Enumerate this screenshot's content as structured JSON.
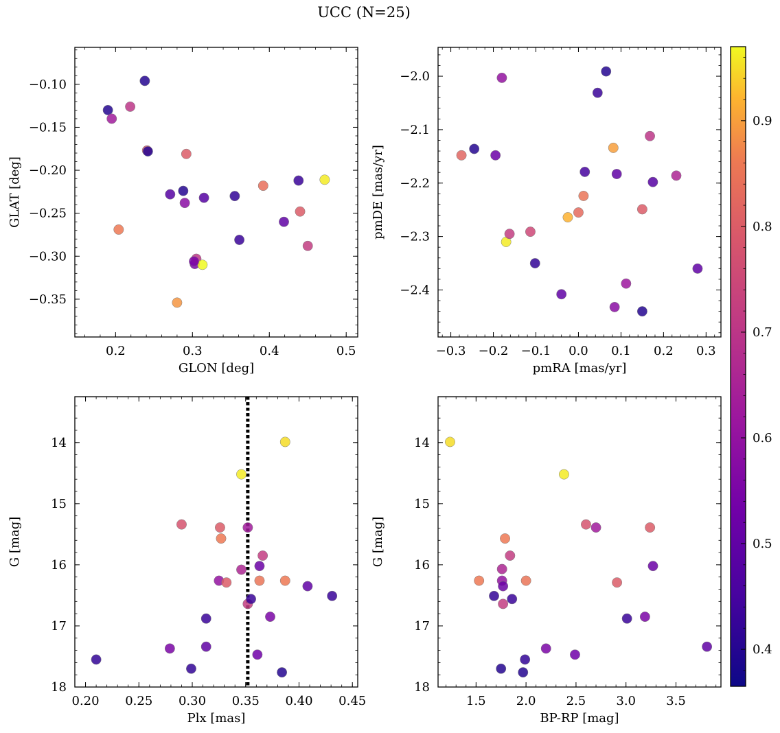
{
  "figure": {
    "title": "UCC (N=25)"
  },
  "colorbar": {
    "range": [
      0.365,
      0.97
    ],
    "ticks": [
      0.4,
      0.5,
      0.6,
      0.7,
      0.8,
      0.9
    ],
    "colormap": "plasma"
  },
  "chart_data": [
    {
      "type": "scatter",
      "id": "glon-glat",
      "xlabel": "GLON [deg]",
      "ylabel": "GLAT [deg]",
      "xlim": [
        0.147,
        0.515
      ],
      "ylim": [
        -0.394,
        -0.057
      ],
      "y_inverted": false,
      "xticks": [
        0.2,
        0.3,
        0.4,
        0.5
      ],
      "xtick_labels": [
        "0.2",
        "0.3",
        "0.4",
        "0.5"
      ],
      "yticks": [
        -0.35,
        -0.3,
        -0.25,
        -0.2,
        -0.15,
        -0.1
      ],
      "ytick_labels": [
        "−0.35",
        "−0.30",
        "−0.25",
        "−0.20",
        "−0.15",
        "−0.10"
      ],
      "x": [
        0.19,
        0.195,
        0.219,
        0.204,
        0.238,
        0.241,
        0.242,
        0.271,
        0.28,
        0.288,
        0.29,
        0.292,
        0.303,
        0.305,
        0.313,
        0.315,
        0.355,
        0.361,
        0.392,
        0.419,
        0.438,
        0.44,
        0.45,
        0.472,
        0.302
      ],
      "y": [
        -0.13,
        -0.14,
        -0.126,
        -0.269,
        -0.096,
        -0.177,
        -0.178,
        -0.228,
        -0.354,
        -0.224,
        -0.238,
        -0.181,
        -0.309,
        -0.303,
        -0.31,
        -0.232,
        -0.23,
        -0.281,
        -0.218,
        -0.26,
        -0.212,
        -0.248,
        -0.288,
        -0.211,
        -0.306
      ],
      "c": [
        0.4,
        0.63,
        0.7,
        0.86,
        0.4,
        0.78,
        0.4,
        0.48,
        0.89,
        0.4,
        0.58,
        0.8,
        0.55,
        0.7,
        0.97,
        0.48,
        0.42,
        0.43,
        0.84,
        0.5,
        0.43,
        0.8,
        0.72,
        0.96,
        0.55
      ]
    },
    {
      "type": "scatter",
      "id": "pmra-pmde",
      "xlabel": "pmRA [mas/yr]",
      "ylabel": "pmDE [mas/yr]",
      "xlim": [
        -0.33,
        0.335
      ],
      "ylim": [
        -2.488,
        -1.946
      ],
      "y_inverted": false,
      "xticks": [
        -0.3,
        -0.2,
        -0.1,
        0.0,
        0.1,
        0.2,
        0.3
      ],
      "xtick_labels": [
        "−0.3",
        "−0.2",
        "−0.1",
        "0.0",
        "0.1",
        "0.2",
        "0.3"
      ],
      "yticks": [
        -2.4,
        -2.3,
        -2.2,
        -2.1,
        -2.0
      ],
      "ytick_labels": [
        "−2.4",
        "−2.3",
        "−2.2",
        "−2.1",
        "−2.0"
      ],
      "x": [
        -0.275,
        -0.245,
        -0.195,
        -0.18,
        -0.17,
        -0.162,
        -0.113,
        -0.102,
        -0.04,
        -0.025,
        0.0,
        0.012,
        0.015,
        0.045,
        0.065,
        0.082,
        0.085,
        0.09,
        0.112,
        0.15,
        0.15,
        0.168,
        0.175,
        0.23,
        0.28
      ],
      "y": [
        -2.148,
        -2.136,
        -2.148,
        -2.003,
        -2.31,
        -2.295,
        -2.291,
        -2.35,
        -2.408,
        -2.264,
        -2.255,
        -2.224,
        -2.179,
        -2.031,
        -1.991,
        -2.134,
        -2.432,
        -2.183,
        -2.388,
        -2.249,
        -2.44,
        -2.112,
        -2.198,
        -2.186,
        -2.36
      ],
      "c": [
        0.82,
        0.4,
        0.52,
        0.6,
        0.96,
        0.72,
        0.75,
        0.42,
        0.5,
        0.92,
        0.83,
        0.85,
        0.45,
        0.43,
        0.4,
        0.9,
        0.58,
        0.5,
        0.62,
        0.8,
        0.4,
        0.7,
        0.48,
        0.66,
        0.5
      ]
    },
    {
      "type": "scatter",
      "id": "plx-g",
      "xlabel": "Plx [mas]",
      "ylabel": "G [mag]",
      "xlim": [
        0.19,
        0.455
      ],
      "ylim": [
        13.25,
        18.0
      ],
      "y_inverted": true,
      "xticks": [
        0.2,
        0.25,
        0.3,
        0.35,
        0.4,
        0.45
      ],
      "xtick_labels": [
        "0.20",
        "0.25",
        "0.30",
        "0.35",
        "0.40",
        "0.45"
      ],
      "yticks": [
        14,
        15,
        16,
        17,
        18
      ],
      "ytick_labels": [
        "14",
        "15",
        "16",
        "17",
        "18"
      ],
      "vline": {
        "x": 0.352,
        "style": "dotted",
        "color": "#000000"
      },
      "x": [
        0.21,
        0.279,
        0.29,
        0.299,
        0.313,
        0.313,
        0.325,
        0.326,
        0.327,
        0.332,
        0.346,
        0.346,
        0.352,
        0.352,
        0.355,
        0.361,
        0.363,
        0.363,
        0.366,
        0.373,
        0.384,
        0.387,
        0.387,
        0.408,
        0.431
      ],
      "y": [
        17.55,
        17.37,
        15.34,
        17.7,
        17.34,
        16.88,
        16.26,
        15.39,
        15.57,
        16.29,
        14.52,
        16.08,
        15.39,
        16.64,
        16.56,
        17.47,
        16.02,
        16.26,
        15.85,
        16.85,
        17.76,
        13.99,
        16.26,
        16.35,
        16.51
      ],
      "c": [
        0.42,
        0.55,
        0.78,
        0.42,
        0.5,
        0.43,
        0.6,
        0.8,
        0.86,
        0.8,
        0.96,
        0.66,
        0.63,
        0.72,
        0.43,
        0.53,
        0.52,
        0.85,
        0.72,
        0.55,
        0.4,
        0.95,
        0.86,
        0.5,
        0.43
      ]
    },
    {
      "type": "scatter",
      "id": "bprp-g",
      "xlabel": "BP-RP [mag]",
      "ylabel": "G [mag]",
      "xlim": [
        1.12,
        3.95
      ],
      "ylim": [
        13.25,
        18.0
      ],
      "y_inverted": true,
      "xticks": [
        1.5,
        2.0,
        2.5,
        3.0,
        3.5
      ],
      "xtick_labels": [
        "1.5",
        "2.0",
        "2.5",
        "3.0",
        "3.5"
      ],
      "yticks": [
        14,
        15,
        16,
        17,
        18
      ],
      "ytick_labels": [
        "14",
        "15",
        "16",
        "17",
        "18"
      ],
      "x": [
        1.24,
        1.53,
        1.68,
        1.75,
        1.76,
        1.76,
        1.77,
        1.79,
        1.84,
        1.86,
        1.97,
        1.99,
        2.0,
        2.2,
        2.38,
        2.49,
        2.6,
        2.7,
        2.91,
        3.01,
        3.19,
        3.24,
        3.27,
        3.81,
        1.77
      ],
      "y": [
        13.99,
        16.26,
        16.51,
        17.7,
        16.07,
        16.26,
        16.64,
        15.57,
        15.85,
        16.56,
        17.76,
        17.55,
        16.26,
        17.37,
        14.52,
        17.47,
        15.34,
        15.39,
        16.29,
        16.88,
        16.85,
        15.39,
        16.02,
        17.34,
        16.35
      ],
      "c": [
        0.95,
        0.86,
        0.42,
        0.4,
        0.66,
        0.6,
        0.72,
        0.86,
        0.72,
        0.43,
        0.4,
        0.42,
        0.85,
        0.55,
        0.96,
        0.53,
        0.78,
        0.63,
        0.8,
        0.43,
        0.55,
        0.8,
        0.52,
        0.5,
        0.52
      ]
    }
  ]
}
